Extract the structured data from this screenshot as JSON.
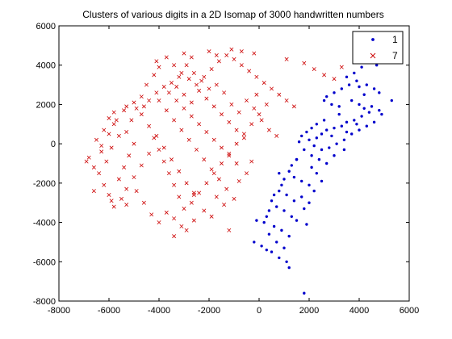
{
  "chart_data": {
    "type": "scatter",
    "title": "Clusters of various digits in a 2D Isomap of 3000 handwritten numbers",
    "xlabel": "",
    "ylabel": "",
    "xlim": [
      -8000,
      6000
    ],
    "ylim": [
      -8000,
      6000
    ],
    "xticks": [
      -8000,
      -6000,
      -4000,
      -2000,
      0,
      2000,
      4000,
      6000
    ],
    "yticks": [
      -8000,
      -6000,
      -4000,
      -2000,
      0,
      2000,
      4000,
      6000
    ],
    "grid": false,
    "legend_position": "top-right",
    "series": [
      {
        "name": "1",
        "marker": "dot",
        "color": "#0000cc",
        "points": [
          [
            4400,
            4200
          ],
          [
            4700,
            4000
          ],
          [
            4100,
            3900
          ],
          [
            3800,
            3600
          ],
          [
            3500,
            3400
          ],
          [
            3900,
            3200
          ],
          [
            4300,
            3000
          ],
          [
            4600,
            2800
          ],
          [
            4800,
            2600
          ],
          [
            5300,
            2200
          ],
          [
            3600,
            3000
          ],
          [
            3300,
            2800
          ],
          [
            3000,
            2600
          ],
          [
            2700,
            2400
          ],
          [
            2600,
            2200
          ],
          [
            2900,
            2000
          ],
          [
            3200,
            1900
          ],
          [
            3700,
            2200
          ],
          [
            4000,
            2000
          ],
          [
            4200,
            1800
          ],
          [
            4500,
            1900
          ],
          [
            4800,
            1700
          ],
          [
            4900,
            1500
          ],
          [
            4400,
            1600
          ],
          [
            4100,
            1400
          ],
          [
            3800,
            1200
          ],
          [
            3500,
            1100
          ],
          [
            3300,
            900
          ],
          [
            3000,
            800
          ],
          [
            2700,
            700
          ],
          [
            2500,
            500
          ],
          [
            2300,
            300
          ],
          [
            2000,
            200
          ],
          [
            2200,
            -100
          ],
          [
            2500,
            -300
          ],
          [
            2800,
            -200
          ],
          [
            3100,
            0
          ],
          [
            3400,
            200
          ],
          [
            3700,
            500
          ],
          [
            4000,
            700
          ],
          [
            4300,
            900
          ],
          [
            4600,
            1100
          ],
          [
            2600,
            1200
          ],
          [
            2300,
            1000
          ],
          [
            2100,
            800
          ],
          [
            1900,
            600
          ],
          [
            1700,
            400
          ],
          [
            1600,
            100
          ],
          [
            1800,
            -300
          ],
          [
            2100,
            -600
          ],
          [
            2400,
            -800
          ],
          [
            2700,
            -1000
          ],
          [
            3000,
            -600
          ],
          [
            1500,
            -800
          ],
          [
            1300,
            -1100
          ],
          [
            1200,
            -1400
          ],
          [
            1400,
            -1700
          ],
          [
            1700,
            -1900
          ],
          [
            2000,
            -2100
          ],
          [
            2300,
            -1500
          ],
          [
            1000,
            -1800
          ],
          [
            900,
            -2100
          ],
          [
            800,
            -2400
          ],
          [
            1100,
            -2600
          ],
          [
            1400,
            -2900
          ],
          [
            1700,
            -2700
          ],
          [
            600,
            -2600
          ],
          [
            500,
            -2900
          ],
          [
            700,
            -3200
          ],
          [
            1000,
            -3400
          ],
          [
            1300,
            -3700
          ],
          [
            400,
            -3400
          ],
          [
            300,
            -3700
          ],
          [
            200,
            -4000
          ],
          [
            -100,
            -3900
          ],
          [
            600,
            -4200
          ],
          [
            900,
            -4400
          ],
          [
            1200,
            -4700
          ],
          [
            400,
            -4600
          ],
          [
            700,
            -5000
          ],
          [
            1000,
            -5300
          ],
          [
            500,
            -5500
          ],
          [
            800,
            -5800
          ],
          [
            1100,
            -6000
          ],
          [
            1200,
            -6300
          ],
          [
            -200,
            -5000
          ],
          [
            100,
            -5200
          ],
          [
            300,
            -5400
          ],
          [
            2000,
            -3000
          ],
          [
            1800,
            -3300
          ],
          [
            1500,
            -3900
          ],
          [
            1900,
            -4100
          ],
          [
            2200,
            -2400
          ],
          [
            2500,
            -1900
          ],
          [
            800,
            -1500
          ],
          [
            3200,
            1500
          ],
          [
            3500,
            600
          ],
          [
            3900,
            1000
          ],
          [
            4200,
            2500
          ],
          [
            4000,
            2900
          ],
          [
            1800,
            -7600
          ],
          [
            1500,
            -800
          ],
          [
            2100,
            -1200
          ],
          [
            2900,
            400
          ],
          [
            3400,
            -300
          ]
        ]
      },
      {
        "name": "7",
        "marker": "x",
        "color": "#cc0000",
        "points": [
          [
            -6800,
            -700
          ],
          [
            -6600,
            -1200
          ],
          [
            -6300,
            -400
          ],
          [
            -6500,
            200
          ],
          [
            -6200,
            700
          ],
          [
            -6000,
            1300
          ],
          [
            -5800,
            1000
          ],
          [
            -5600,
            400
          ],
          [
            -5900,
            -200
          ],
          [
            -6100,
            -900
          ],
          [
            -6400,
            -1500
          ],
          [
            -6200,
            -2100
          ],
          [
            -6000,
            -2600
          ],
          [
            -5800,
            -3200
          ],
          [
            -5500,
            -2800
          ],
          [
            -5300,
            -2300
          ],
          [
            -5600,
            -1800
          ],
          [
            -5400,
            -1200
          ],
          [
            -5200,
            -600
          ],
          [
            -5000,
            0
          ],
          [
            -5300,
            600
          ],
          [
            -5100,
            1200
          ],
          [
            -4900,
            1800
          ],
          [
            -4700,
            2400
          ],
          [
            -4500,
            3000
          ],
          [
            -4200,
            3500
          ],
          [
            -4000,
            3900
          ],
          [
            -3700,
            4400
          ],
          [
            -3400,
            4000
          ],
          [
            -3100,
            3600
          ],
          [
            -2800,
            3300
          ],
          [
            -2500,
            3000
          ],
          [
            -2200,
            3400
          ],
          [
            -1900,
            3800
          ],
          [
            -1600,
            4200
          ],
          [
            -1300,
            4500
          ],
          [
            -1000,
            4300
          ],
          [
            -700,
            4000
          ],
          [
            -400,
            3700
          ],
          [
            -100,
            3400
          ],
          [
            200,
            3100
          ],
          [
            500,
            2800
          ],
          [
            800,
            2500
          ],
          [
            1100,
            2200
          ],
          [
            1400,
            1900
          ],
          [
            -4700,
            1500
          ],
          [
            -4400,
            900
          ],
          [
            -4200,
            300
          ],
          [
            -4000,
            -300
          ],
          [
            -3800,
            -900
          ],
          [
            -3600,
            -1500
          ],
          [
            -3400,
            -2100
          ],
          [
            -3200,
            -2700
          ],
          [
            -3000,
            -3300
          ],
          [
            -2700,
            -3000
          ],
          [
            -2400,
            -2500
          ],
          [
            -2100,
            -2000
          ],
          [
            -1800,
            -1500
          ],
          [
            -1500,
            -1000
          ],
          [
            -1200,
            -500
          ],
          [
            -900,
            0
          ],
          [
            -600,
            500
          ],
          [
            -300,
            1000
          ],
          [
            0,
            1500
          ],
          [
            300,
            2000
          ],
          [
            -3600,
            2600
          ],
          [
            -3300,
            2200
          ],
          [
            -3000,
            1800
          ],
          [
            -2700,
            1400
          ],
          [
            -2400,
            1000
          ],
          [
            -2100,
            600
          ],
          [
            -1800,
            200
          ],
          [
            -1500,
            -200
          ],
          [
            -1200,
            -600
          ],
          [
            -900,
            -1000
          ],
          [
            -3300,
            2900
          ],
          [
            -3000,
            2500
          ],
          [
            -2700,
            2100
          ],
          [
            -2400,
            2700
          ],
          [
            -2100,
            2300
          ],
          [
            -1800,
            1900
          ],
          [
            -1500,
            1500
          ],
          [
            -1200,
            1100
          ],
          [
            -900,
            700
          ],
          [
            -600,
            300
          ],
          [
            -4000,
            2200
          ],
          [
            -3700,
            1700
          ],
          [
            -3400,
            1200
          ],
          [
            -3100,
            700
          ],
          [
            -2800,
            200
          ],
          [
            -2500,
            -300
          ],
          [
            -2200,
            -800
          ],
          [
            -1900,
            -1300
          ],
          [
            -1600,
            -1800
          ],
          [
            -1300,
            -2300
          ],
          [
            -1000,
            -2800
          ],
          [
            -2600,
            -2600
          ],
          [
            -2900,
            -2000
          ],
          [
            -3200,
            -1400
          ],
          [
            -3500,
            -800
          ],
          [
            -3800,
            -200
          ],
          [
            -4100,
            400
          ],
          [
            -4400,
            -500
          ],
          [
            -4700,
            -1100
          ],
          [
            -5000,
            -1700
          ],
          [
            -5300,
            -3100
          ],
          [
            -4900,
            -2400
          ],
          [
            -4600,
            -3000
          ],
          [
            -4300,
            -3600
          ],
          [
            -4000,
            -4000
          ],
          [
            -3700,
            -3500
          ],
          [
            -3400,
            -3800
          ],
          [
            -3100,
            -4200
          ],
          [
            -1200,
            -4400
          ],
          [
            -2600,
            -2500
          ],
          [
            -5900,
            -2900
          ],
          [
            -6600,
            -2400
          ],
          [
            -6900,
            -900
          ],
          [
            -5800,
            1600
          ],
          [
            -5400,
            1700
          ],
          [
            -4100,
            4200
          ],
          [
            -3000,
            4600
          ],
          [
            -2700,
            4400
          ],
          [
            -2000,
            4700
          ],
          [
            -1700,
            4500
          ],
          [
            -1100,
            4800
          ],
          [
            -700,
            4700
          ],
          [
            -200,
            4600
          ],
          [
            1100,
            4300
          ],
          [
            1800,
            4100
          ],
          [
            2200,
            3800
          ],
          [
            2600,
            3500
          ],
          [
            3000,
            3300
          ],
          [
            3300,
            3900
          ],
          [
            3900,
            4400
          ],
          [
            -200,
            1800
          ],
          [
            100,
            1200
          ],
          [
            400,
            700
          ],
          [
            700,
            400
          ],
          [
            -100,
            2500
          ],
          [
            -500,
            2200
          ],
          [
            -800,
            1600
          ],
          [
            -1100,
            2000
          ],
          [
            -1400,
            2600
          ],
          [
            -1700,
            3000
          ],
          [
            -2000,
            2800
          ],
          [
            -2300,
            3200
          ],
          [
            -2600,
            3600
          ],
          [
            -2900,
            4000
          ],
          [
            -3200,
            3400
          ],
          [
            -3500,
            3100
          ],
          [
            -3800,
            2900
          ],
          [
            -4100,
            2600
          ],
          [
            -4400,
            2200
          ],
          [
            -4600,
            1900
          ],
          [
            -5000,
            2100
          ],
          [
            -5300,
            1900
          ],
          [
            -5700,
            1200
          ],
          [
            -6000,
            500
          ],
          [
            -6300,
            -100
          ],
          [
            -2200,
            -3400
          ],
          [
            -1900,
            -3700
          ],
          [
            -2600,
            -3900
          ],
          [
            -2900,
            -4400
          ],
          [
            -3400,
            -4700
          ],
          [
            -1700,
            -2700
          ],
          [
            -1400,
            -3100
          ],
          [
            -800,
            -1900
          ],
          [
            -500,
            -1500
          ],
          [
            -300,
            -900
          ]
        ]
      }
    ]
  }
}
